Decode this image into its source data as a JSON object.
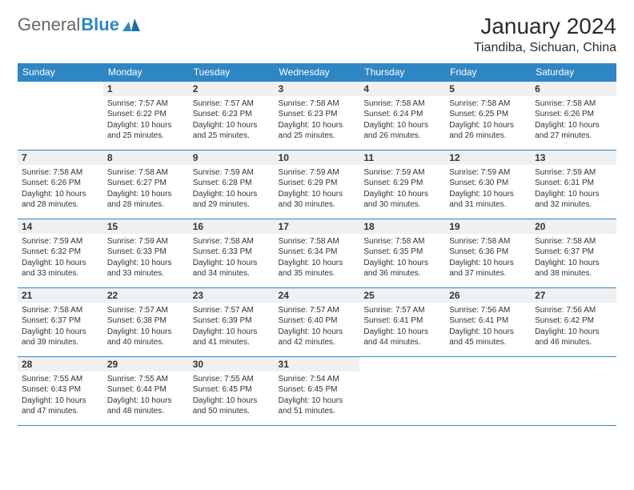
{
  "logo": {
    "part1": "General",
    "part2": "Blue"
  },
  "header": {
    "month": "January 2024",
    "location": "Tiandiba, Sichuan, China"
  },
  "weekdays": [
    "Sunday",
    "Monday",
    "Tuesday",
    "Wednesday",
    "Thursday",
    "Friday",
    "Saturday"
  ],
  "colors": {
    "header_bg": "#2f86c5",
    "day_bg": "#eef0f2",
    "row_line": "#2f86c5"
  },
  "weeks": [
    [
      null,
      {
        "d": "1",
        "sr": "7:57 AM",
        "ss": "6:22 PM",
        "dl": "10 hours and 25 minutes."
      },
      {
        "d": "2",
        "sr": "7:57 AM",
        "ss": "6:23 PM",
        "dl": "10 hours and 25 minutes."
      },
      {
        "d": "3",
        "sr": "7:58 AM",
        "ss": "6:23 PM",
        "dl": "10 hours and 25 minutes."
      },
      {
        "d": "4",
        "sr": "7:58 AM",
        "ss": "6:24 PM",
        "dl": "10 hours and 26 minutes."
      },
      {
        "d": "5",
        "sr": "7:58 AM",
        "ss": "6:25 PM",
        "dl": "10 hours and 26 minutes."
      },
      {
        "d": "6",
        "sr": "7:58 AM",
        "ss": "6:26 PM",
        "dl": "10 hours and 27 minutes."
      }
    ],
    [
      {
        "d": "7",
        "sr": "7:58 AM",
        "ss": "6:26 PM",
        "dl": "10 hours and 28 minutes."
      },
      {
        "d": "8",
        "sr": "7:58 AM",
        "ss": "6:27 PM",
        "dl": "10 hours and 28 minutes."
      },
      {
        "d": "9",
        "sr": "7:59 AM",
        "ss": "6:28 PM",
        "dl": "10 hours and 29 minutes."
      },
      {
        "d": "10",
        "sr": "7:59 AM",
        "ss": "6:29 PM",
        "dl": "10 hours and 30 minutes."
      },
      {
        "d": "11",
        "sr": "7:59 AM",
        "ss": "6:29 PM",
        "dl": "10 hours and 30 minutes."
      },
      {
        "d": "12",
        "sr": "7:59 AM",
        "ss": "6:30 PM",
        "dl": "10 hours and 31 minutes."
      },
      {
        "d": "13",
        "sr": "7:59 AM",
        "ss": "6:31 PM",
        "dl": "10 hours and 32 minutes."
      }
    ],
    [
      {
        "d": "14",
        "sr": "7:59 AM",
        "ss": "6:32 PM",
        "dl": "10 hours and 33 minutes."
      },
      {
        "d": "15",
        "sr": "7:59 AM",
        "ss": "6:33 PM",
        "dl": "10 hours and 33 minutes."
      },
      {
        "d": "16",
        "sr": "7:58 AM",
        "ss": "6:33 PM",
        "dl": "10 hours and 34 minutes."
      },
      {
        "d": "17",
        "sr": "7:58 AM",
        "ss": "6:34 PM",
        "dl": "10 hours and 35 minutes."
      },
      {
        "d": "18",
        "sr": "7:58 AM",
        "ss": "6:35 PM",
        "dl": "10 hours and 36 minutes."
      },
      {
        "d": "19",
        "sr": "7:58 AM",
        "ss": "6:36 PM",
        "dl": "10 hours and 37 minutes."
      },
      {
        "d": "20",
        "sr": "7:58 AM",
        "ss": "6:37 PM",
        "dl": "10 hours and 38 minutes."
      }
    ],
    [
      {
        "d": "21",
        "sr": "7:58 AM",
        "ss": "6:37 PM",
        "dl": "10 hours and 39 minutes."
      },
      {
        "d": "22",
        "sr": "7:57 AM",
        "ss": "6:38 PM",
        "dl": "10 hours and 40 minutes."
      },
      {
        "d": "23",
        "sr": "7:57 AM",
        "ss": "6:39 PM",
        "dl": "10 hours and 41 minutes."
      },
      {
        "d": "24",
        "sr": "7:57 AM",
        "ss": "6:40 PM",
        "dl": "10 hours and 42 minutes."
      },
      {
        "d": "25",
        "sr": "7:57 AM",
        "ss": "6:41 PM",
        "dl": "10 hours and 44 minutes."
      },
      {
        "d": "26",
        "sr": "7:56 AM",
        "ss": "6:41 PM",
        "dl": "10 hours and 45 minutes."
      },
      {
        "d": "27",
        "sr": "7:56 AM",
        "ss": "6:42 PM",
        "dl": "10 hours and 46 minutes."
      }
    ],
    [
      {
        "d": "28",
        "sr": "7:55 AM",
        "ss": "6:43 PM",
        "dl": "10 hours and 47 minutes."
      },
      {
        "d": "29",
        "sr": "7:55 AM",
        "ss": "6:44 PM",
        "dl": "10 hours and 48 minutes."
      },
      {
        "d": "30",
        "sr": "7:55 AM",
        "ss": "6:45 PM",
        "dl": "10 hours and 50 minutes."
      },
      {
        "d": "31",
        "sr": "7:54 AM",
        "ss": "6:45 PM",
        "dl": "10 hours and 51 minutes."
      },
      null,
      null,
      null
    ]
  ],
  "labels": {
    "sunrise": "Sunrise:",
    "sunset": "Sunset:",
    "daylight": "Daylight:"
  }
}
